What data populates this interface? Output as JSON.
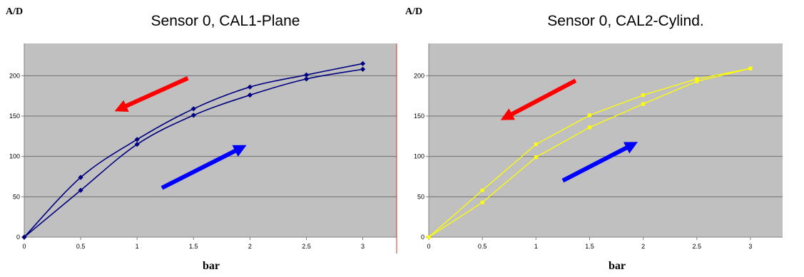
{
  "chart_data": [
    {
      "type": "line",
      "title": "Sensor 0, CAL1-Plane",
      "ylabel": "A/D",
      "xlabel": "bar",
      "xlim": [
        0,
        3.3
      ],
      "ylim": [
        0,
        240
      ],
      "xticks": [
        "0",
        "0.5",
        "1",
        "1.5",
        "2",
        "2.5",
        "3"
      ],
      "yticks": [
        "0",
        "50",
        "100",
        "150",
        "200"
      ],
      "grid": true,
      "plot_background": "#c0c0c0",
      "series": [
        {
          "color": "#000080",
          "marker": "diamond",
          "x": [
            0,
            0.5,
            1,
            1.5,
            2,
            2.5,
            3
          ],
          "y": [
            0,
            74,
            121,
            159,
            186,
            201,
            215
          ]
        },
        {
          "color": "#000080",
          "marker": "diamond",
          "x": [
            0,
            0.5,
            1,
            1.5,
            2,
            2.5,
            3
          ],
          "y": [
            0,
            58,
            115,
            151,
            176,
            196,
            208
          ]
        }
      ],
      "annotations": [
        {
          "shape": "arrow",
          "color": "#ff0000",
          "meaning": "decreasing pressure",
          "from": [
            1.45,
            197
          ],
          "to": [
            0.8,
            156
          ]
        },
        {
          "shape": "arrow",
          "color": "#0000ff",
          "meaning": "increasing pressure",
          "from": [
            1.22,
            61
          ],
          "to": [
            1.97,
            114
          ]
        }
      ]
    },
    {
      "type": "line",
      "title": "Sensor 0, CAL2-Cylind.",
      "ylabel": "A/D",
      "xlabel": "bar",
      "xlim": [
        0,
        3.3
      ],
      "ylim": [
        0,
        240
      ],
      "xticks": [
        "0",
        "0.5",
        "1",
        "1.5",
        "2",
        "2.5",
        "3"
      ],
      "yticks": [
        "0",
        "50",
        "100",
        "150",
        "200"
      ],
      "grid": true,
      "plot_background": "#c0c0c0",
      "series": [
        {
          "color": "#ffff00",
          "marker": "square",
          "x": [
            0,
            0.5,
            1,
            1.5,
            2,
            2.5,
            3
          ],
          "y": [
            0,
            58,
            115,
            151,
            176,
            196,
            209
          ]
        },
        {
          "color": "#ffff00",
          "marker": "square",
          "x": [
            0,
            0.5,
            1,
            1.5,
            2,
            2.5,
            3
          ],
          "y": [
            0,
            43,
            99,
            136,
            165,
            193,
            209
          ]
        }
      ],
      "annotations": [
        {
          "shape": "arrow",
          "color": "#ff0000",
          "meaning": "decreasing pressure",
          "from": [
            1.37,
            194
          ],
          "to": [
            0.67,
            145
          ]
        },
        {
          "shape": "arrow",
          "color": "#0000ff",
          "meaning": "increasing pressure",
          "from": [
            1.25,
            70
          ],
          "to": [
            1.95,
            118
          ]
        }
      ]
    }
  ]
}
